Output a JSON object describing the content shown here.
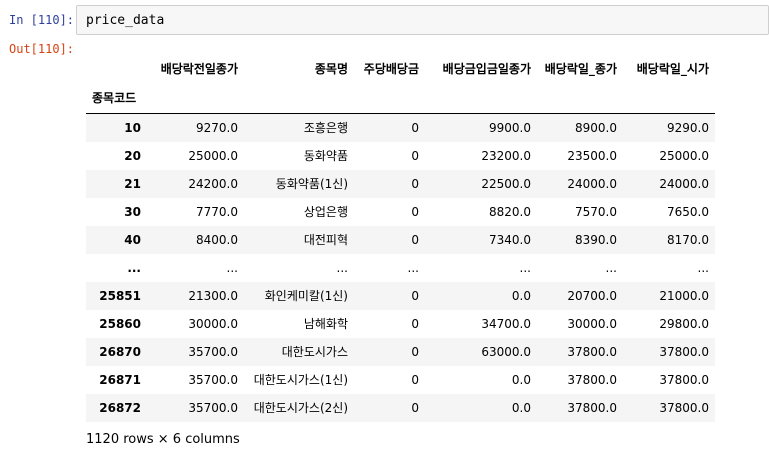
{
  "cell": {
    "in_prompt": "In [110]:",
    "out_prompt": "Out[110]:",
    "code": "price_data"
  },
  "dataframe": {
    "columns": [
      "배당락전일종가",
      "종목명",
      "주당배당금",
      "배당금입금일종가",
      "배당락일_종가",
      "배당락일_시가"
    ],
    "index_name": "종목코드",
    "rows": [
      {
        "index": "10",
        "values": [
          "9270.0",
          "조흥은행",
          "0",
          "9900.0",
          "8900.0",
          "9290.0"
        ]
      },
      {
        "index": "20",
        "values": [
          "25000.0",
          "동화약품",
          "0",
          "23200.0",
          "23500.0",
          "25000.0"
        ]
      },
      {
        "index": "21",
        "values": [
          "24200.0",
          "동화약품(1신)",
          "0",
          "22500.0",
          "24000.0",
          "24000.0"
        ]
      },
      {
        "index": "30",
        "values": [
          "7770.0",
          "상업은행",
          "0",
          "8820.0",
          "7570.0",
          "7650.0"
        ]
      },
      {
        "index": "40",
        "values": [
          "8400.0",
          "대전피혁",
          "0",
          "7340.0",
          "8390.0",
          "8170.0"
        ]
      },
      {
        "index": "...",
        "values": [
          "...",
          "...",
          "...",
          "...",
          "...",
          "..."
        ]
      },
      {
        "index": "25851",
        "values": [
          "21300.0",
          "화인케미칼(1신)",
          "0",
          "0.0",
          "20700.0",
          "21000.0"
        ]
      },
      {
        "index": "25860",
        "values": [
          "30000.0",
          "남해화학",
          "0",
          "34700.0",
          "30000.0",
          "29800.0"
        ]
      },
      {
        "index": "26870",
        "values": [
          "35700.0",
          "대한도시가스",
          "0",
          "63000.0",
          "37800.0",
          "37800.0"
        ]
      },
      {
        "index": "26871",
        "values": [
          "35700.0",
          "대한도시가스(1신)",
          "0",
          "0.0",
          "37800.0",
          "37800.0"
        ]
      },
      {
        "index": "26872",
        "values": [
          "35700.0",
          "대한도시가스(2신)",
          "0",
          "0.0",
          "37800.0",
          "37800.0"
        ]
      }
    ],
    "summary": "1120 rows × 6 columns"
  }
}
